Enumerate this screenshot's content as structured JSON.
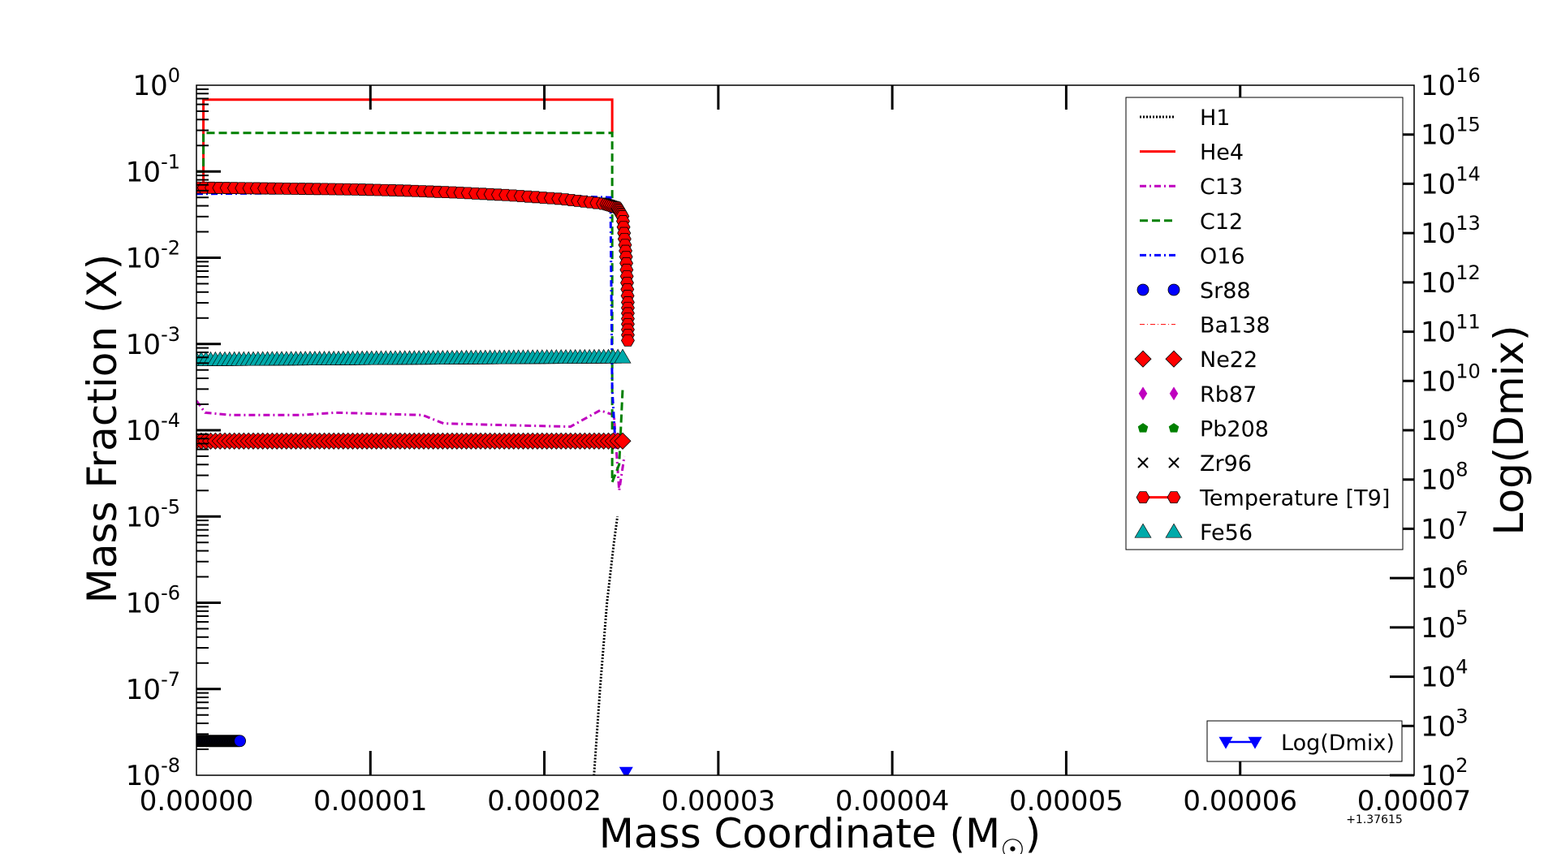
{
  "chart_data": {
    "type": "line",
    "xlabel": "Mass Coordinate (M",
    "xlabel_symbol": "☉",
    "xlabel_close": ")",
    "ylabel": "Mass Fraction (X)",
    "y2label": "Log(Dmix)",
    "x_offset_label": "+1.37615",
    "xlim": [
      0,
      7e-05
    ],
    "ylim": [
      1e-08,
      1
    ],
    "y2lim": [
      100.0,
      1e+16
    ],
    "yscale": "log",
    "y2scale": "log",
    "x_tick_labels": [
      "0.00000",
      "0.00001",
      "0.00002",
      "0.00003",
      "0.00004",
      "0.00005",
      "0.00006",
      "0.00007"
    ],
    "y_tick_labels": [
      {
        "base": "10",
        "exp": "0"
      },
      {
        "base": "10",
        "exp": "-1"
      },
      {
        "base": "10",
        "exp": "-2"
      },
      {
        "base": "10",
        "exp": "-3"
      },
      {
        "base": "10",
        "exp": "-4"
      },
      {
        "base": "10",
        "exp": "-5"
      },
      {
        "base": "10",
        "exp": "-6"
      },
      {
        "base": "10",
        "exp": "-7"
      },
      {
        "base": "10",
        "exp": "-8"
      }
    ],
    "y2_tick_labels": [
      {
        "base": "10",
        "exp": "16"
      },
      {
        "base": "10",
        "exp": "15"
      },
      {
        "base": "10",
        "exp": "14"
      },
      {
        "base": "10",
        "exp": "13"
      },
      {
        "base": "10",
        "exp": "12"
      },
      {
        "base": "10",
        "exp": "11"
      },
      {
        "base": "10",
        "exp": "10"
      },
      {
        "base": "10",
        "exp": "9"
      },
      {
        "base": "10",
        "exp": "8"
      },
      {
        "base": "10",
        "exp": "7"
      },
      {
        "base": "10",
        "exp": "6"
      },
      {
        "base": "10",
        "exp": "5"
      },
      {
        "base": "10",
        "exp": "4"
      },
      {
        "base": "10",
        "exp": "3"
      },
      {
        "base": "10",
        "exp": "2"
      }
    ],
    "grid": false,
    "legend_position": "upper-right",
    "legend2_position": "lower-right",
    "series": [
      {
        "name": "H1",
        "color": "#000000",
        "style": "dotted",
        "x": [
          2.28e-05,
          2.32e-05,
          2.36e-05,
          2.4e-05,
          2.42e-05
        ],
        "y": [
          7e-09,
          1e-07,
          1e-06,
          5e-06,
          1e-05
        ]
      },
      {
        "name": "He4",
        "color": "#ff0000",
        "style": "solid",
        "x": [
          0,
          4e-07,
          4e-07,
          2.39e-05,
          2.39e-05
        ],
        "y": [
          0.06,
          0.06,
          0.68,
          0.68,
          0.28
        ]
      },
      {
        "name": "C13",
        "color": "#bf00bf",
        "style": "dashdot",
        "x": [
          0,
          5e-07,
          2e-06,
          6e-06,
          8e-06,
          1.3e-05,
          1.42e-05,
          1.75e-05,
          2.15e-05,
          2.32e-05,
          2.4e-05,
          2.43e-05,
          2.46e-05
        ],
        "y": [
          0.00022,
          0.00016,
          0.00015,
          0.00015,
          0.00016,
          0.00015,
          0.00012,
          0.000115,
          0.00011,
          0.00017,
          0.00015,
          2e-05,
          5e-05
        ]
      },
      {
        "name": "C12",
        "color": "#008000",
        "style": "dashed",
        "x": [
          0,
          4e-07,
          4e-07,
          2.39e-05,
          2.39e-05,
          2.43e-05,
          2.45e-05
        ],
        "y": [
          0.1,
          0.1,
          0.28,
          0.28,
          2.5e-05,
          4e-05,
          0.0003
        ]
      },
      {
        "name": "O16",
        "color": "#0000ff",
        "style": "dashdot",
        "x": [
          0,
          5e-06,
          1e-05,
          1.5e-05,
          2e-05,
          2.38e-05,
          2.39e-05,
          2.41e-05
        ],
        "y": [
          0.055,
          0.056,
          0.056,
          0.055,
          0.053,
          0.05,
          0.0003,
          6e-05
        ]
      },
      {
        "name": "Sr88",
        "color": "#0000ff",
        "style": "markers",
        "marker": "circle",
        "x": [
          0,
          2.5e-06
        ],
        "y": [
          2.5e-08,
          2.5e-08
        ]
      },
      {
        "name": "Ba138",
        "color": "#ff0000",
        "style": "thin-dashdot",
        "x": [
          0,
          2.45e-05
        ],
        "y": [
          6.5e-09,
          6.5e-09
        ]
      },
      {
        "name": "Ne22",
        "color": "#ff0000",
        "style": "markers",
        "marker": "diamond",
        "x": [
          0,
          2.45e-05
        ],
        "y": [
          7.5e-05,
          7.5e-05
        ]
      },
      {
        "name": "Rb87",
        "color": "#bf00bf",
        "style": "markers",
        "marker": "thin-diamond",
        "x": [],
        "y": []
      },
      {
        "name": "Pb208",
        "color": "#008000",
        "style": "markers",
        "marker": "pentagon",
        "x": [],
        "y": []
      },
      {
        "name": "Zr96",
        "color": "#000000",
        "style": "markers",
        "marker": "x",
        "x": [],
        "y": []
      },
      {
        "name": "Temperature [T9]",
        "color": "#ff0000",
        "style": "line-markers",
        "marker": "hexagon",
        "x": [
          0,
          3e-06,
          6e-06,
          9e-06,
          1.2e-05,
          1.5e-05,
          1.8e-05,
          2.1e-05,
          2.35e-05,
          2.42e-05,
          2.45e-05,
          2.47e-05,
          2.48e-05,
          2.48e-05
        ],
        "y": [
          0.065,
          0.064,
          0.063,
          0.062,
          0.06,
          0.057,
          0.053,
          0.048,
          0.042,
          0.038,
          0.03,
          0.01,
          0.003,
          0.0011
        ]
      },
      {
        "name": "Fe56",
        "color": "#00aaaa",
        "style": "markers",
        "marker": "triangle",
        "x": [
          0,
          2.45e-05
        ],
        "y": [
          0.00065,
          0.0007
        ]
      }
    ],
    "series_y2": [
      {
        "name": "Log(Dmix)",
        "color": "#0000ff",
        "style": "line-markers",
        "marker": "triangle-down",
        "x": [
          2.47e-05
        ],
        "y": [
          14.0
        ]
      }
    ]
  }
}
